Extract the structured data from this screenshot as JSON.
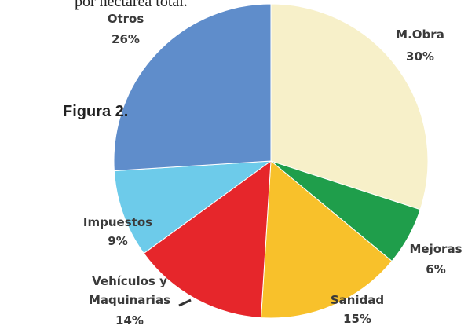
{
  "header_text": "por hectárea total.",
  "chart_data": {
    "type": "pie",
    "title": "Figura 2.",
    "categories": [
      "M.Obra",
      "Mejoras",
      "Sanidad",
      "Vehículos y Maquinarias",
      "Impuestos",
      "Otros"
    ],
    "values": [
      30,
      6,
      15,
      14,
      9,
      26
    ],
    "value_labels": [
      "30%",
      "6%",
      "15%",
      "14%",
      "9%",
      "26%"
    ],
    "colors": [
      "#f7f0c9",
      "#1f9e4b",
      "#f8c12b",
      "#e6262b",
      "#6dcbea",
      "#5f8dcb"
    ]
  }
}
